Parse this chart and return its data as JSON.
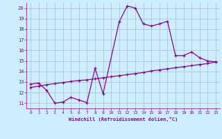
{
  "xlabel": "Windchill (Refroidissement éolien,°C)",
  "bg_color": "#cceeff",
  "grid_color": "#aabbcc",
  "line_color": "#880088",
  "xlim": [
    -0.5,
    23.5
  ],
  "ylim": [
    10.5,
    20.5
  ],
  "yticks": [
    11,
    12,
    13,
    14,
    15,
    16,
    17,
    18,
    19,
    20
  ],
  "xticks": [
    0,
    1,
    2,
    3,
    4,
    5,
    6,
    7,
    8,
    9,
    10,
    11,
    12,
    13,
    14,
    15,
    16,
    17,
    18,
    19,
    20,
    21,
    22,
    23
  ],
  "line1_x": [
    0,
    1,
    2,
    3,
    4,
    5,
    6,
    7,
    8,
    9,
    11,
    12,
    13,
    14,
    15,
    16,
    17,
    18,
    19,
    20,
    21,
    22,
    23
  ],
  "line1_y": [
    12.8,
    12.9,
    12.2,
    11.0,
    11.1,
    11.55,
    11.3,
    11.05,
    14.3,
    11.9,
    18.7,
    20.2,
    20.0,
    18.5,
    18.3,
    18.5,
    18.75,
    15.5,
    15.5,
    15.85,
    15.3,
    15.0,
    14.9
  ],
  "line2_x": [
    0,
    1,
    2,
    3,
    4,
    5,
    6,
    7,
    8,
    9,
    10,
    11,
    12,
    13,
    14,
    15,
    16,
    17,
    18,
    19,
    20,
    21,
    22,
    23
  ],
  "line2_y": [
    12.5,
    12.6,
    12.75,
    12.85,
    12.95,
    13.05,
    13.15,
    13.2,
    13.3,
    13.4,
    13.5,
    13.6,
    13.7,
    13.8,
    13.9,
    14.05,
    14.15,
    14.25,
    14.35,
    14.45,
    14.55,
    14.65,
    14.75,
    14.9
  ]
}
